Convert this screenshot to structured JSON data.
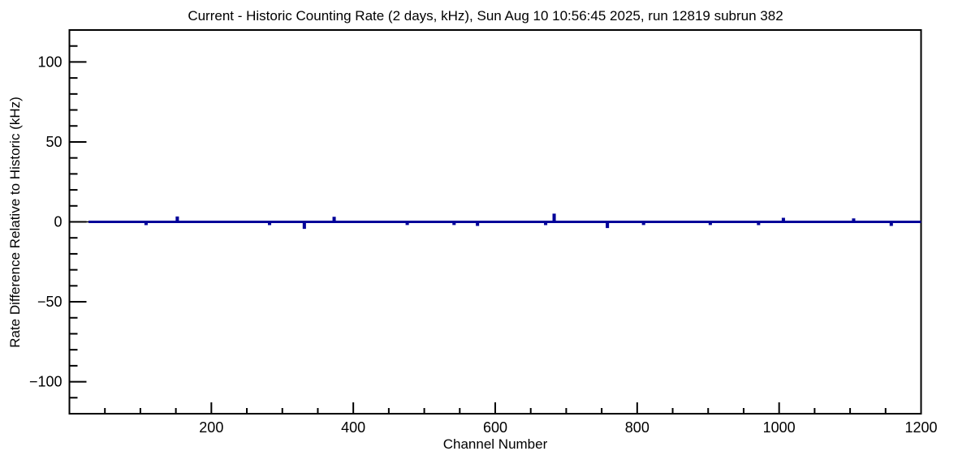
{
  "figure": {
    "title": "Current - Historic Counting Rate (2 days, kHz), Sun Aug 10 10:56:45 2025, run 12819 subrun 382",
    "x_axis_title": "Channel Number",
    "y_axis_title": "Rate Difference Relative to Historic (kHz)"
  },
  "chart_data": {
    "type": "line",
    "subtype": "histogram-step",
    "title": "Current - Historic Counting Rate (2 days, kHz), Sun Aug 10 10:56:45 2025, run 12819 subrun 382",
    "xlabel": "Channel Number",
    "ylabel": "Rate Difference Relative to Historic (kHz)",
    "xlim": [
      0,
      1200
    ],
    "ylim": [
      -120,
      120
    ],
    "grid": false,
    "legend": false,
    "background_color": "#ffffff",
    "axis_color": "#000000",
    "line_color": "#000099",
    "baseline_value": 0,
    "data_start_channel": 27,
    "data_end_channel": 1200,
    "description": "Rate difference is flat at 0 kHz across almost all channels with small isolated spikes",
    "x_major_ticks": [
      {
        "value": 200,
        "label": "200"
      },
      {
        "value": 400,
        "label": "400"
      },
      {
        "value": 600,
        "label": "600"
      },
      {
        "value": 800,
        "label": "800"
      },
      {
        "value": 1000,
        "label": "1000"
      },
      {
        "value": 1200,
        "label": "1200"
      }
    ],
    "x_minor_tick_step": 50,
    "y_major_ticks": [
      {
        "value": -100,
        "label": "−100"
      },
      {
        "value": -50,
        "label": "−50"
      },
      {
        "value": 0,
        "label": "0"
      },
      {
        "value": 50,
        "label": "50"
      },
      {
        "value": 100,
        "label": "100"
      }
    ],
    "y_minor_tick_step": 10,
    "series": [
      {
        "name": "current-minus-historic-rate",
        "color": "#000099",
        "bin_half_width": 0.6,
        "spikes": [
          {
            "channel": 108,
            "value": -1.3
          },
          {
            "channel": 152,
            "value": 2.6
          },
          {
            "channel": 282,
            "value": -1.3
          },
          {
            "channel": 331,
            "value": -3.6
          },
          {
            "channel": 373,
            "value": 2.4
          },
          {
            "channel": 476,
            "value": -1.2
          },
          {
            "channel": 542,
            "value": -1.2
          },
          {
            "channel": 575,
            "value": -1.8
          },
          {
            "channel": 671,
            "value": -1.3
          },
          {
            "channel": 683,
            "value": 4.4
          },
          {
            "channel": 758,
            "value": -3.1
          },
          {
            "channel": 809,
            "value": -1.2
          },
          {
            "channel": 903,
            "value": -1.2
          },
          {
            "channel": 971,
            "value": -1.3
          },
          {
            "channel": 1006,
            "value": 1.8
          },
          {
            "channel": 1105,
            "value": 1.4
          },
          {
            "channel": 1158,
            "value": -1.8
          }
        ]
      }
    ]
  }
}
